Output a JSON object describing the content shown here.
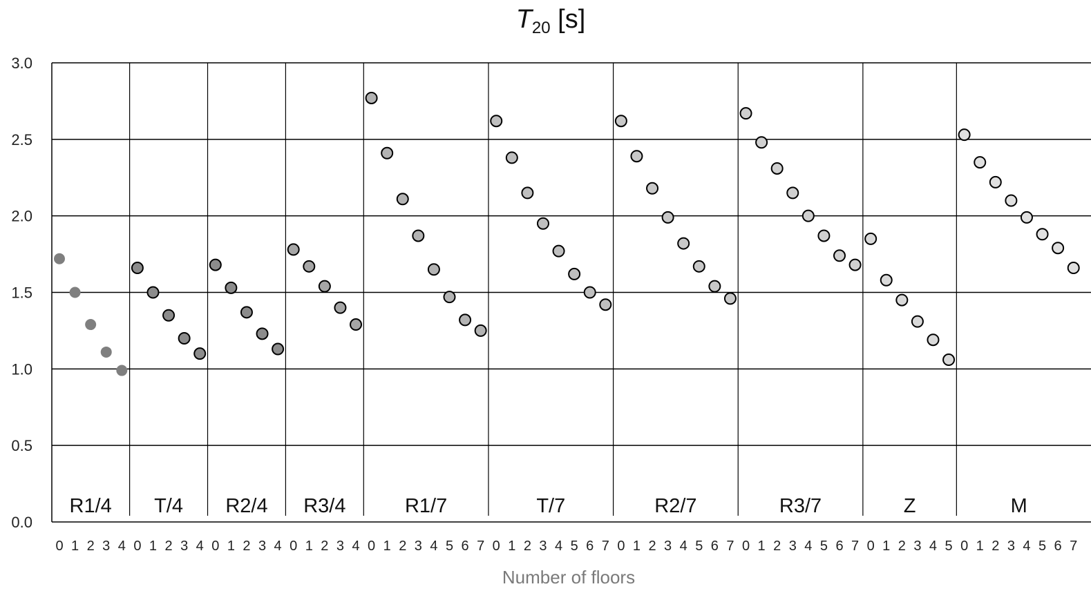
{
  "chart_data": {
    "type": "scatter",
    "title_main": "T",
    "title_sub": "20",
    "title_unit": " [s]",
    "xlabel": "Number of floors",
    "ylabel": "",
    "ylim": [
      0,
      3
    ],
    "yticks": [
      "0.0",
      "0.5",
      "1.0",
      "1.5",
      "2.0",
      "2.5",
      "3.0"
    ],
    "grid": true,
    "groups": [
      {
        "name": "R1/4",
        "color": "#7f7f7f",
        "outline": false,
        "x": [
          0,
          1,
          2,
          3,
          4
        ],
        "values": [
          1.72,
          1.5,
          1.29,
          1.11,
          0.99
        ]
      },
      {
        "name": "T/4",
        "color": "#8c8c8c",
        "outline": true,
        "x": [
          0,
          1,
          2,
          3,
          4
        ],
        "values": [
          1.66,
          1.5,
          1.35,
          1.2,
          1.1
        ]
      },
      {
        "name": "R2/4",
        "color": "#8c8c8c",
        "outline": true,
        "x": [
          0,
          1,
          2,
          3,
          4
        ],
        "values": [
          1.68,
          1.53,
          1.37,
          1.23,
          1.13
        ]
      },
      {
        "name": "R3/4",
        "color": "#a6a6a6",
        "outline": true,
        "x": [
          0,
          1,
          2,
          3,
          4
        ],
        "values": [
          1.78,
          1.67,
          1.54,
          1.4,
          1.29
        ]
      },
      {
        "name": "R1/7",
        "color": "#b3b3b3",
        "outline": true,
        "x": [
          0,
          1,
          2,
          3,
          4,
          5,
          6,
          7
        ],
        "values": [
          2.77,
          2.41,
          2.11,
          1.87,
          1.65,
          1.47,
          1.32,
          1.25
        ]
      },
      {
        "name": "T/7",
        "color": "#bfbfbf",
        "outline": true,
        "x": [
          0,
          1,
          2,
          3,
          4,
          5,
          6,
          7
        ],
        "values": [
          2.62,
          2.38,
          2.15,
          1.95,
          1.77,
          1.62,
          1.5,
          1.42
        ]
      },
      {
        "name": "R2/7",
        "color": "#c8c8c8",
        "outline": true,
        "x": [
          0,
          1,
          2,
          3,
          4,
          5,
          6,
          7
        ],
        "values": [
          2.62,
          2.39,
          2.18,
          1.99,
          1.82,
          1.67,
          1.54,
          1.46
        ]
      },
      {
        "name": "R3/7",
        "color": "#d0d0d0",
        "outline": true,
        "x": [
          0,
          1,
          2,
          3,
          4,
          5,
          6,
          7
        ],
        "values": [
          2.67,
          2.48,
          2.31,
          2.15,
          2.0,
          1.87,
          1.74,
          1.68
        ]
      },
      {
        "name": "Z",
        "color": "#d9d9d9",
        "outline": true,
        "x": [
          0,
          1,
          2,
          3,
          4,
          5
        ],
        "values": [
          1.85,
          1.58,
          1.45,
          1.31,
          1.19,
          1.06
        ]
      },
      {
        "name": "M",
        "color": "#e0e0e0",
        "outline": true,
        "x": [
          0,
          1,
          2,
          3,
          4,
          5,
          6,
          7
        ],
        "values": [
          2.53,
          2.35,
          2.22,
          2.1,
          1.99,
          1.88,
          1.79,
          1.66
        ]
      }
    ]
  }
}
